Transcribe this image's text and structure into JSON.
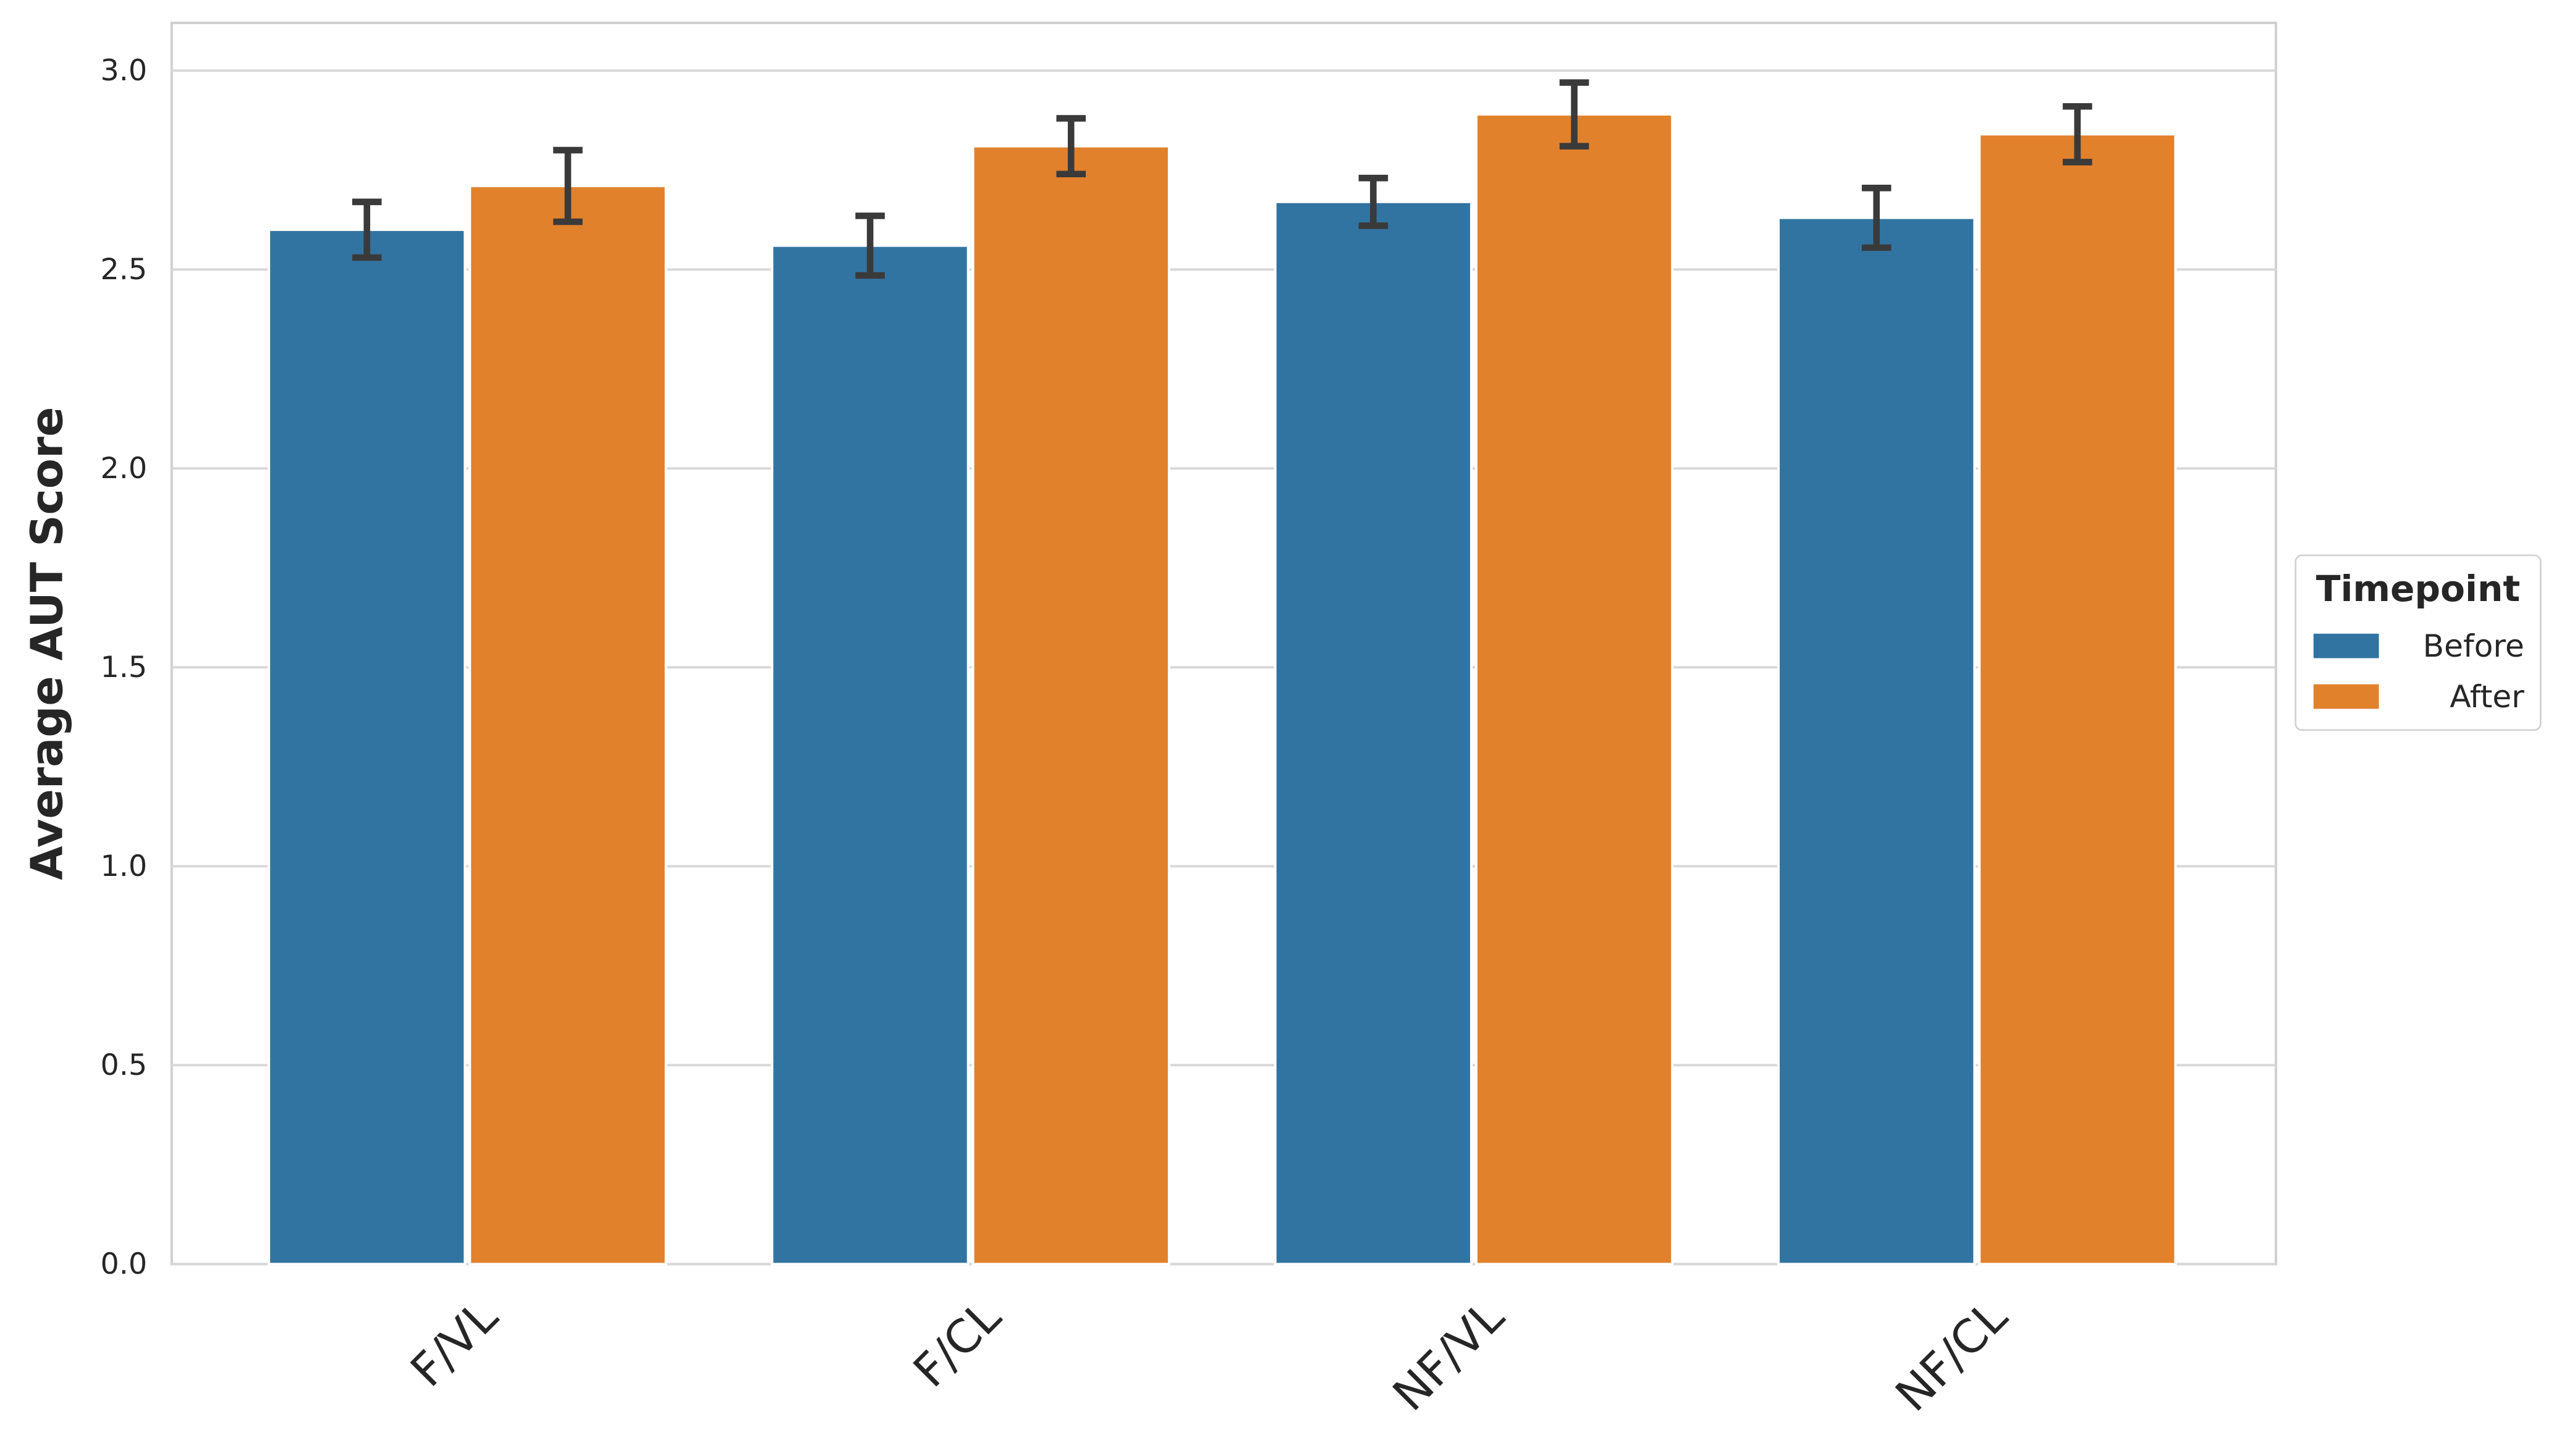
{
  "chart_data": {
    "type": "bar",
    "y_label": "Average AUT Score",
    "legend_title": "Timepoint",
    "legend_position": "right",
    "categories": [
      "F/VL",
      "F/CL",
      "NF/VL",
      "NF/CL"
    ],
    "series": [
      {
        "name": "Before",
        "color": "#3274a1",
        "values": [
          2.6,
          2.56,
          2.67,
          2.63
        ],
        "errors": [
          0.07,
          0.075,
          0.06,
          0.075
        ]
      },
      {
        "name": "After",
        "color": "#e1812c",
        "values": [
          2.71,
          2.81,
          2.89,
          2.84
        ],
        "errors": [
          0.09,
          0.07,
          0.08,
          0.07
        ]
      }
    ],
    "ylim": [
      0,
      3.12
    ],
    "yticks": [
      {
        "value": 0,
        "label": "0.0"
      },
      0.5,
      {
        "value": 1,
        "label": "1.0"
      },
      1.5,
      {
        "value": 2,
        "label": "2.0"
      },
      2.5,
      {
        "value": 3,
        "label": "3.0"
      }
    ],
    "grid": true
  }
}
